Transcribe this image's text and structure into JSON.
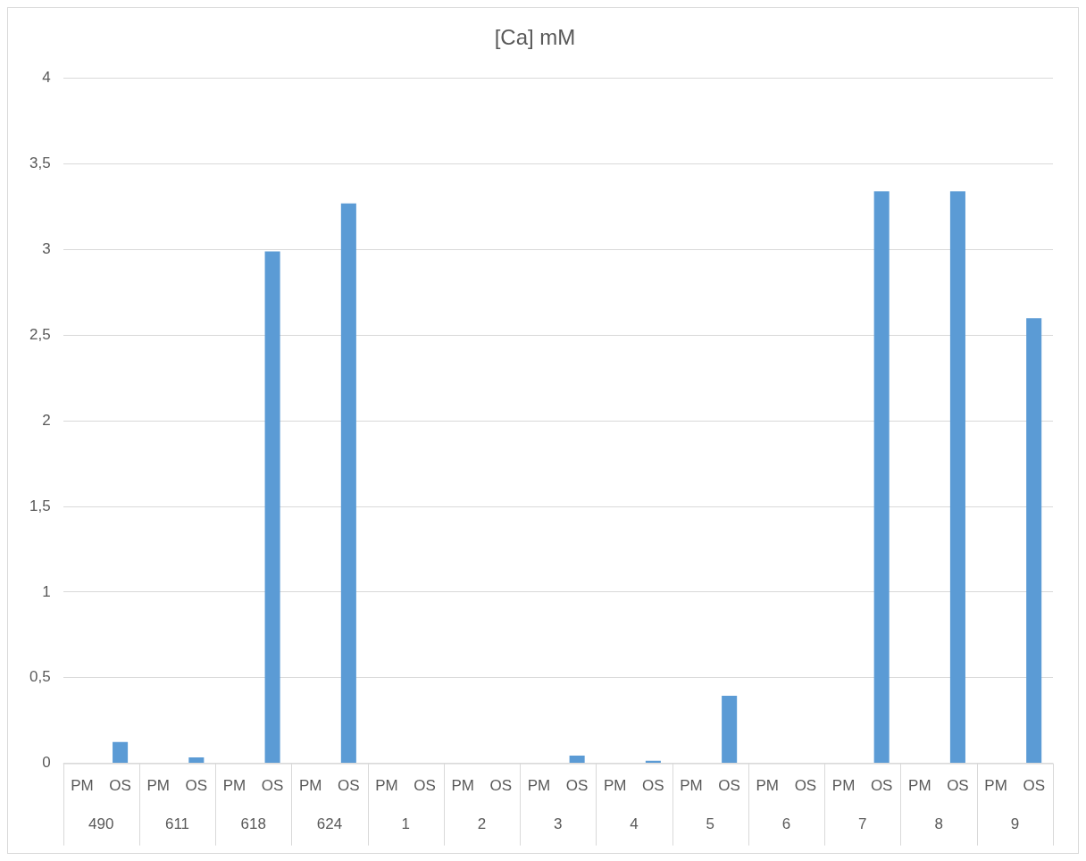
{
  "chart_data": {
    "type": "bar",
    "title": "[Ca] mM",
    "categories": [
      "PM",
      "OS",
      "PM",
      "OS",
      "PM",
      "OS",
      "PM",
      "OS",
      "PM",
      "OS",
      "PM",
      "OS",
      "PM",
      "OS",
      "PM",
      "OS",
      "PM",
      "OS",
      "PM",
      "OS",
      "PM",
      "OS",
      "PM",
      "OS",
      "PM",
      "OS"
    ],
    "values": [
      0,
      0.125,
      0,
      0.035,
      0,
      2.99,
      0,
      3.27,
      0,
      0,
      0,
      0,
      0,
      0.045,
      0,
      0.015,
      0,
      0.395,
      0,
      0,
      0,
      3.34,
      0,
      3.34,
      0,
      2.6
    ],
    "color": "#5b9bd5",
    "annotations": [
      "490",
      "611",
      "618",
      "624",
      "1",
      "2",
      "3",
      "4",
      "5",
      "6",
      "7",
      "8",
      "9"
    ],
    "ylim": [
      0,
      4
    ],
    "yticks": [
      0,
      {
        "value": 0.5,
        "label": "0,5"
      },
      1,
      {
        "value": 1.5,
        "label": "1,5"
      },
      2,
      {
        "value": 2.5,
        "label": "2,5"
      },
      3,
      {
        "value": 3.5,
        "label": "3,5"
      },
      4
    ],
    "grid": "y",
    "legend": false
  }
}
